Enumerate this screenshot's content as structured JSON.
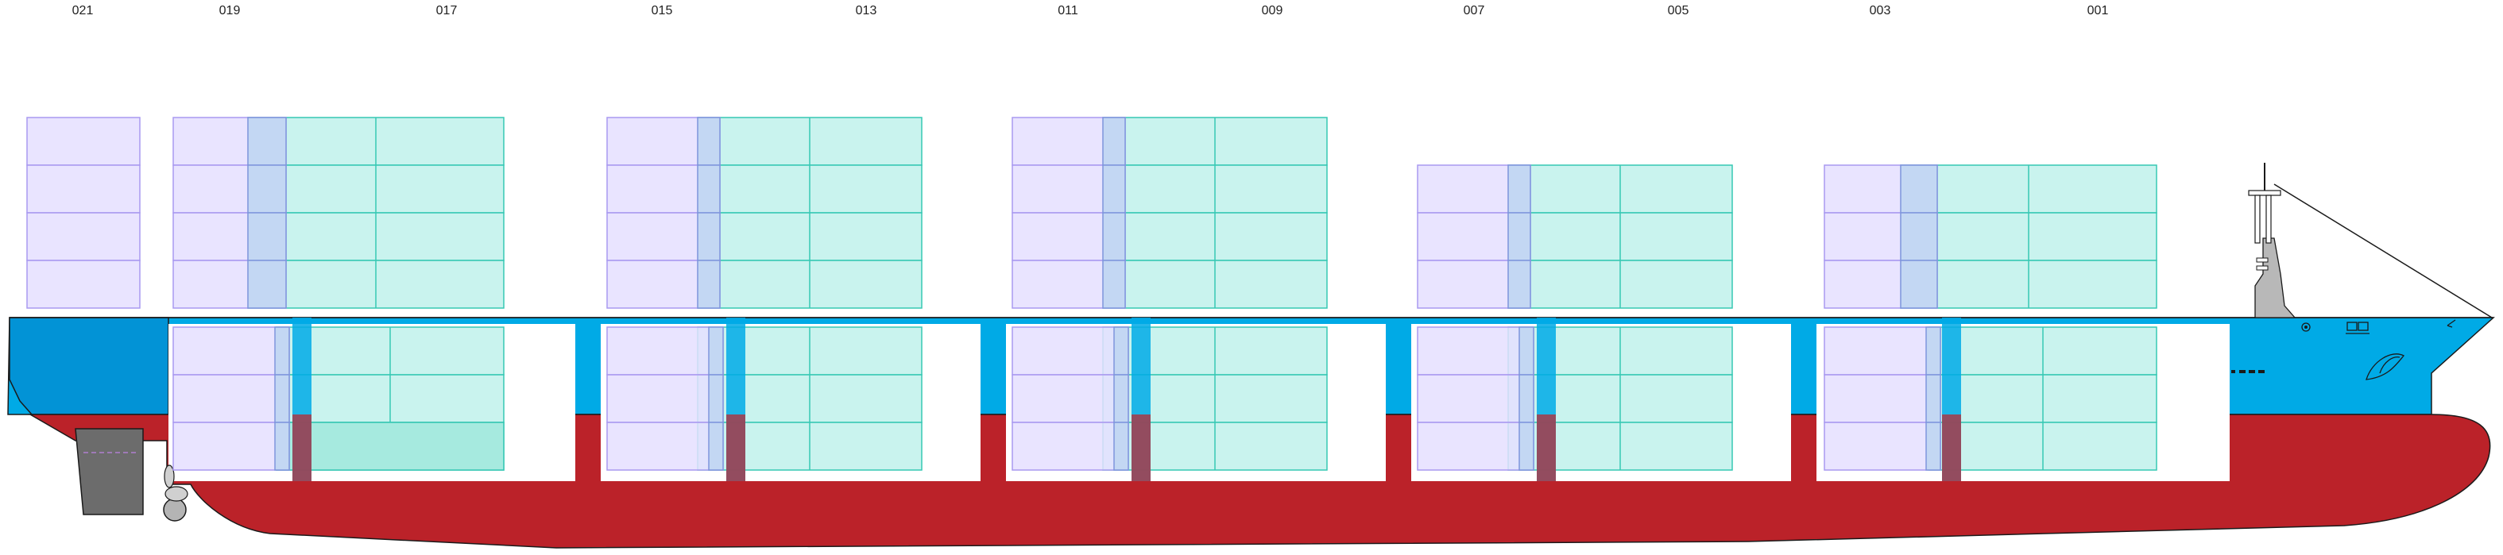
{
  "bay_labels": [
    "021",
    "019",
    "017",
    "015",
    "013",
    "011",
    "009",
    "007",
    "005",
    "003",
    "001"
  ],
  "colors": {
    "hull_red": "#bb2229",
    "hull_blue": "#00aae6",
    "stern_blue": "#0293d6",
    "forty_foot_fill": "#c9f3ee",
    "forty_foot_stroke": "#36c8b4",
    "twenty_foot_fill": "#e5dfff",
    "twenty_foot_stroke": "#a99af0",
    "overlap_fill": "#c3d7f3",
    "reefer_fill": "#a6eadf",
    "rudder_gray": "#6c6c6c",
    "background": "#ffffff"
  },
  "icons": [
    "rudder-icon",
    "propeller-icon",
    "mast-icon",
    "anchor-icon",
    "bow-thruster-icon",
    "bulbous-bow-icon"
  ]
}
